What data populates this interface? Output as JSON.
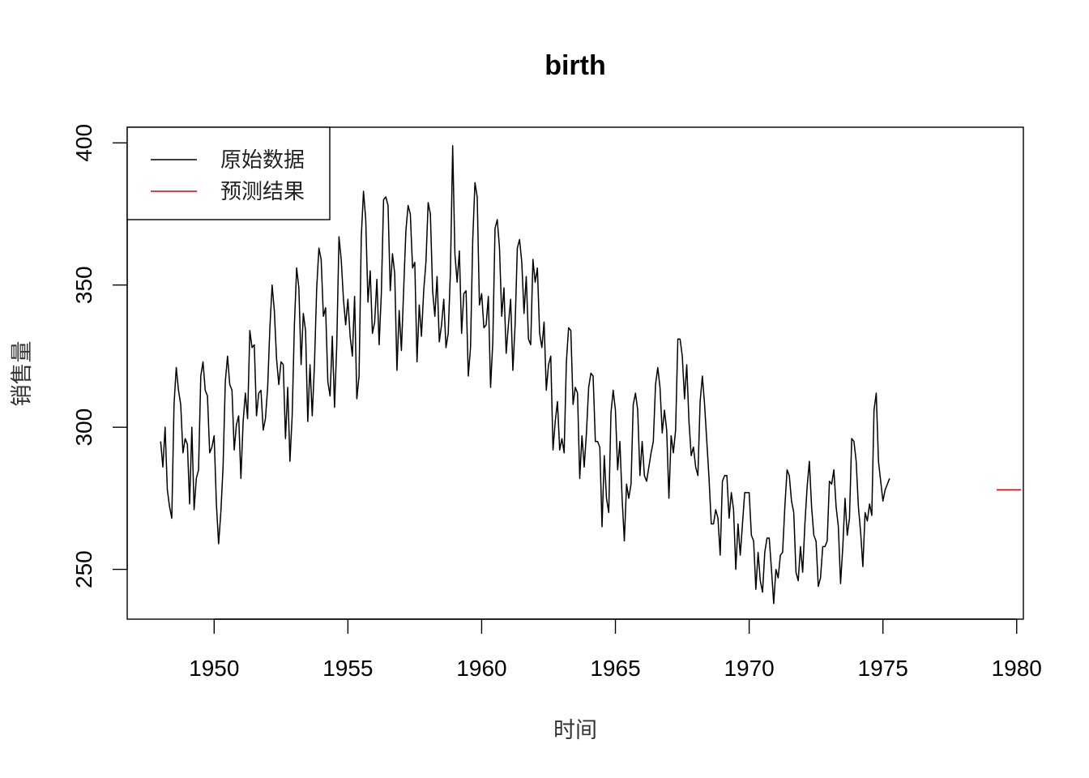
{
  "chart_data": {
    "type": "line",
    "title": "birth",
    "xlabel": "时间",
    "ylabel": "销售量",
    "xlim": [
      1946.75,
      1980.25
    ],
    "ylim": [
      232.5,
      405.5
    ],
    "x_ticks": [
      1950,
      1955,
      1960,
      1965,
      1970,
      1975,
      1980
    ],
    "y_ticks": [
      250,
      300,
      350,
      400
    ],
    "grid": false,
    "legend_position": "top-left",
    "series": [
      {
        "name": "原始数据",
        "color": "#000000",
        "start": 1948.0,
        "frequency": 12,
        "values": [
          295,
          286,
          300,
          278,
          272,
          268,
          308,
          321,
          313,
          308,
          291,
          296,
          294,
          273,
          300,
          271,
          282,
          285,
          318,
          323,
          313,
          311,
          291,
          293,
          297,
          273,
          259,
          270,
          286,
          316,
          325,
          315,
          313,
          292,
          301,
          304,
          282,
          302,
          312,
          303,
          334,
          328,
          329,
          304,
          312,
          313,
          299,
          303,
          314,
          335,
          350,
          341,
          324,
          315,
          323,
          322,
          296,
          314,
          288,
          304,
          336,
          356,
          349,
          322,
          340,
          334,
          302,
          322,
          304,
          322,
          349,
          363,
          359,
          339,
          342,
          316,
          311,
          332,
          307,
          329,
          367,
          359,
          345,
          336,
          345,
          332,
          325,
          346,
          310,
          318,
          367,
          383,
          373,
          344,
          355,
          333,
          337,
          352,
          329,
          347,
          380,
          381,
          378,
          348,
          361,
          354,
          320,
          341,
          327,
          348,
          369,
          378,
          375,
          356,
          358,
          323,
          343,
          332,
          348,
          358,
          379,
          375,
          348,
          339,
          353,
          330,
          336,
          345,
          328,
          333,
          355,
          399,
          361,
          351,
          362,
          333,
          347,
          348,
          318,
          328,
          366,
          386,
          381,
          343,
          347,
          335,
          336,
          346,
          314,
          330,
          370,
          373,
          363,
          339,
          349,
          326,
          336,
          345,
          320,
          336,
          363,
          366,
          358,
          340,
          353,
          331,
          329,
          359,
          351,
          356,
          333,
          328,
          337,
          313,
          322,
          325,
          292,
          302,
          309,
          292,
          296,
          291,
          323,
          335,
          334,
          308,
          314,
          312,
          282,
          297,
          286,
          298,
          314,
          319,
          318,
          295,
          295,
          293,
          265,
          290,
          275,
          270,
          305,
          313,
          306,
          285,
          295,
          275,
          260,
          280,
          275,
          280,
          308,
          312,
          306,
          283,
          295,
          283,
          281,
          286,
          291,
          295,
          315,
          321,
          314,
          298,
          306,
          299,
          275,
          297,
          291,
          299,
          331,
          331,
          325,
          310,
          322,
          302,
          290,
          293,
          286,
          283,
          309,
          318,
          308,
          295,
          282,
          266,
          266,
          271,
          268,
          255,
          281,
          283,
          283,
          268,
          277,
          271,
          250,
          266,
          255,
          266,
          277,
          277,
          277,
          262,
          260,
          243,
          256,
          246,
          242,
          256,
          261,
          261,
          250,
          238,
          250,
          247,
          255,
          256,
          272,
          285,
          283,
          274,
          270,
          249,
          246,
          258,
          249,
          266,
          279,
          288,
          272,
          262,
          260,
          244,
          247,
          258,
          258,
          260,
          281,
          280,
          285,
          272,
          265,
          245,
          258,
          275,
          262,
          268,
          296,
          295,
          288,
          272,
          263,
          251,
          270,
          267,
          273,
          269,
          306,
          312,
          288,
          281,
          274,
          278,
          280,
          282
        ]
      },
      {
        "name": "预测结果",
        "color": "#e00000",
        "start": 1979.25,
        "frequency": 12,
        "values": [
          278,
          278,
          278,
          278,
          278,
          278,
          278,
          278,
          278,
          278,
          278,
          278
        ]
      }
    ]
  }
}
